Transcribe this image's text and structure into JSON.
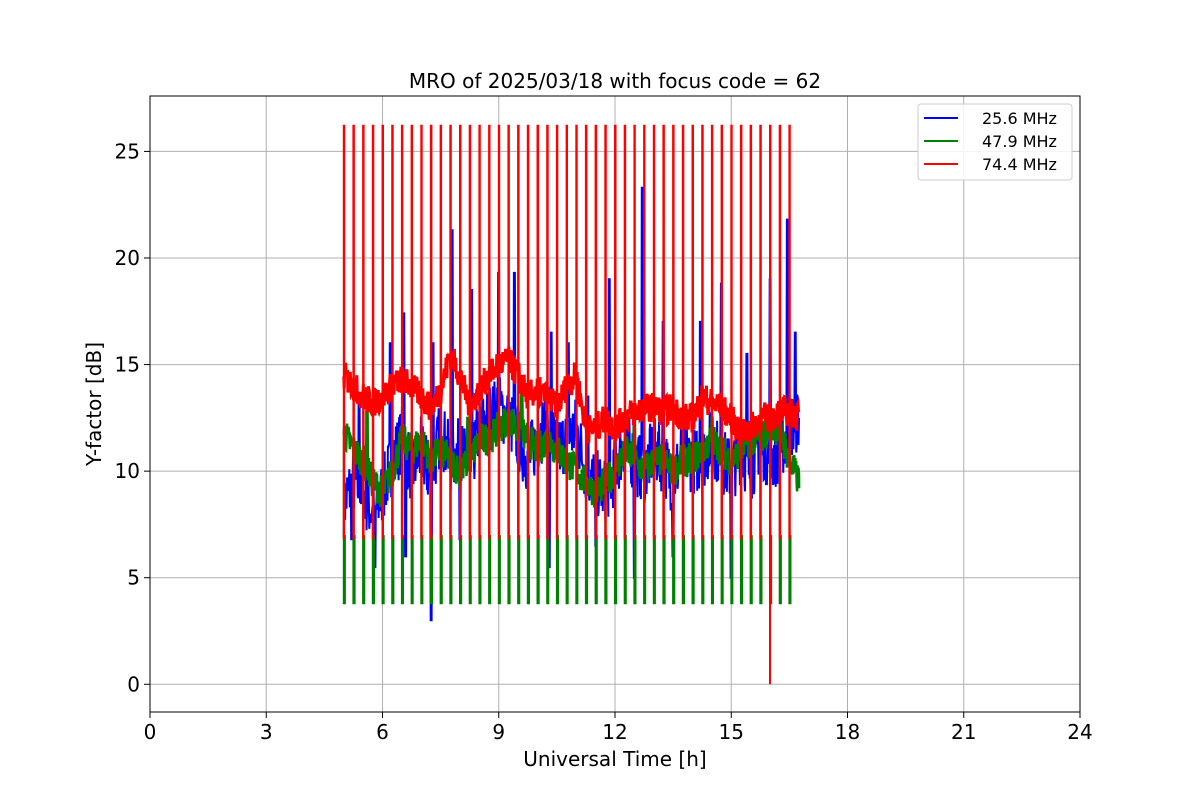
{
  "chart_data": {
    "type": "line",
    "title": "MRO of 2025/03/18 with focus code = 62",
    "xlabel": "Universal Time [h]",
    "ylabel": "Y-factor [dB]",
    "xlim": [
      0,
      24
    ],
    "ylim": [
      -1.3,
      27.6
    ],
    "xticks": [
      0,
      3,
      6,
      9,
      12,
      15,
      18,
      21,
      24
    ],
    "yticks": [
      0,
      5,
      10,
      15,
      20,
      25
    ],
    "grid": true,
    "legend_position": "top-right",
    "series": [
      {
        "name": "25.6 MHz",
        "color": "#0000ff",
        "x": [
          5.0,
          5.25,
          5.5,
          5.75,
          6.0,
          6.25,
          6.5,
          6.75,
          7.0,
          7.25,
          7.5,
          7.75,
          8.0,
          8.25,
          8.5,
          8.75,
          9.0,
          9.25,
          9.5,
          9.75,
          10.0,
          10.25,
          10.5,
          10.75,
          11.0,
          11.25,
          11.5,
          11.75,
          12.0,
          12.25,
          12.5,
          12.75,
          13.0,
          13.25,
          13.5,
          13.75,
          14.0,
          14.25,
          14.5,
          14.75,
          15.0,
          15.25,
          15.5,
          15.75,
          16.0,
          16.25,
          16.5,
          16.75
        ],
        "values": [
          8.5,
          9.5,
          9.0,
          8.0,
          9.0,
          10.5,
          11.5,
          10.0,
          11.0,
          9.5,
          12.0,
          10.5,
          11.0,
          10.0,
          12.0,
          12.5,
          13.0,
          12.5,
          11.5,
          10.5,
          11.5,
          12.5,
          11.0,
          11.5,
          12.0,
          10.0,
          9.5,
          9.0,
          10.0,
          11.5,
          10.5,
          10.0,
          11.0,
          10.5,
          9.5,
          11.0,
          10.5,
          10.5,
          11.5,
          10.5,
          10.0,
          11.0,
          10.0,
          11.5,
          10.5,
          11.0,
          12.0,
          12.5
        ],
        "peaks": [
          {
            "x": 5.4,
            "y": 13.2
          },
          {
            "x": 6.2,
            "y": 16.0
          },
          {
            "x": 6.55,
            "y": 17.4
          },
          {
            "x": 7.3,
            "y": 16.0
          },
          {
            "x": 7.8,
            "y": 21.3
          },
          {
            "x": 8.3,
            "y": 18.5
          },
          {
            "x": 9.0,
            "y": 19.3
          },
          {
            "x": 9.4,
            "y": 19.3
          },
          {
            "x": 10.35,
            "y": 16.5
          },
          {
            "x": 10.8,
            "y": 16.0
          },
          {
            "x": 11.3,
            "y": 13.5
          },
          {
            "x": 11.85,
            "y": 19.0
          },
          {
            "x": 12.7,
            "y": 23.3
          },
          {
            "x": 13.25,
            "y": 17.0
          },
          {
            "x": 14.2,
            "y": 17.0
          },
          {
            "x": 14.75,
            "y": 18.8
          },
          {
            "x": 15.4,
            "y": 15.5
          },
          {
            "x": 16.0,
            "y": 19.0
          },
          {
            "x": 16.45,
            "y": 21.8
          },
          {
            "x": 16.65,
            "y": 16.5
          }
        ],
        "troughs": [
          {
            "x": 5.2,
            "y": 6.8
          },
          {
            "x": 5.8,
            "y": 5.5
          },
          {
            "x": 6.6,
            "y": 6.0
          },
          {
            "x": 7.25,
            "y": 3.0
          },
          {
            "x": 8.0,
            "y": 6.8
          },
          {
            "x": 10.3,
            "y": 5.5
          },
          {
            "x": 11.5,
            "y": 6.5
          },
          {
            "x": 12.5,
            "y": 5.0
          },
          {
            "x": 13.5,
            "y": 6.0
          },
          {
            "x": 15.0,
            "y": 5.0
          }
        ]
      },
      {
        "name": "47.9 MHz",
        "color": "#008000",
        "x": [
          5.0,
          5.25,
          5.5,
          5.75,
          6.0,
          6.25,
          6.5,
          6.75,
          7.0,
          7.25,
          7.5,
          7.75,
          8.0,
          8.25,
          8.5,
          8.75,
          9.0,
          9.25,
          9.5,
          9.75,
          10.0,
          10.25,
          10.5,
          10.75,
          11.0,
          11.25,
          11.5,
          11.75,
          12.0,
          12.25,
          12.5,
          12.75,
          13.0,
          13.25,
          13.5,
          13.75,
          14.0,
          14.25,
          14.5,
          14.75,
          15.0,
          15.25,
          15.5,
          15.75,
          16.0,
          16.25,
          16.5,
          16.75
        ],
        "values": [
          11.8,
          11.0,
          10.5,
          9.5,
          9.0,
          10.0,
          11.5,
          11.0,
          11.5,
          10.5,
          11.0,
          10.5,
          10.0,
          10.5,
          11.5,
          11.5,
          12.0,
          12.5,
          12.0,
          11.5,
          11.0,
          11.5,
          11.0,
          10.5,
          10.0,
          9.5,
          9.0,
          9.5,
          10.0,
          11.0,
          10.5,
          10.0,
          10.5,
          10.5,
          10.0,
          10.5,
          10.5,
          11.0,
          11.5,
          11.0,
          10.5,
          11.0,
          11.5,
          11.5,
          12.0,
          12.0,
          10.5,
          9.5
        ],
        "peaks": [
          {
            "x": 5.6,
            "y": 13.5
          },
          {
            "x": 8.2,
            "y": 12.5
          },
          {
            "x": 9.6,
            "y": 14.0
          },
          {
            "x": 12.5,
            "y": 13.0
          },
          {
            "x": 14.5,
            "y": 12.5
          }
        ],
        "cycle_low": 3.8,
        "cycle_high": 7.0,
        "end_value": 9.2
      },
      {
        "name": "74.4 MHz",
        "color": "#ff0000",
        "x": [
          5.0,
          5.25,
          5.5,
          5.75,
          6.0,
          6.25,
          6.5,
          6.75,
          7.0,
          7.25,
          7.5,
          7.75,
          8.0,
          8.25,
          8.5,
          8.75,
          9.0,
          9.25,
          9.5,
          9.75,
          10.0,
          10.25,
          10.5,
          10.75,
          11.0,
          11.25,
          11.5,
          11.75,
          12.0,
          12.25,
          12.5,
          12.75,
          13.0,
          13.25,
          13.5,
          13.75,
          14.0,
          14.25,
          14.5,
          14.75,
          15.0,
          15.25,
          15.5,
          15.75,
          16.0,
          16.25,
          16.5,
          16.75
        ],
        "values": [
          14.5,
          14.0,
          13.5,
          13.2,
          13.5,
          14.0,
          14.3,
          14.0,
          13.5,
          13.0,
          13.8,
          15.5,
          14.5,
          13.0,
          13.8,
          14.5,
          15.0,
          15.2,
          14.5,
          13.5,
          13.8,
          13.5,
          13.0,
          14.0,
          14.5,
          12.0,
          12.0,
          12.5,
          12.0,
          12.5,
          12.8,
          13.0,
          13.0,
          12.8,
          13.0,
          12.5,
          12.5,
          13.5,
          13.2,
          13.0,
          12.5,
          11.8,
          12.0,
          12.5,
          12.5,
          12.8,
          12.8,
          12.5
        ],
        "spike_high": 26.2,
        "spike_low": 6.8,
        "dropout": {
          "x": 16.0,
          "y": 0.0
        }
      }
    ],
    "cycle": {
      "start": 5.0,
      "end": 16.52,
      "period": 0.25
    }
  }
}
